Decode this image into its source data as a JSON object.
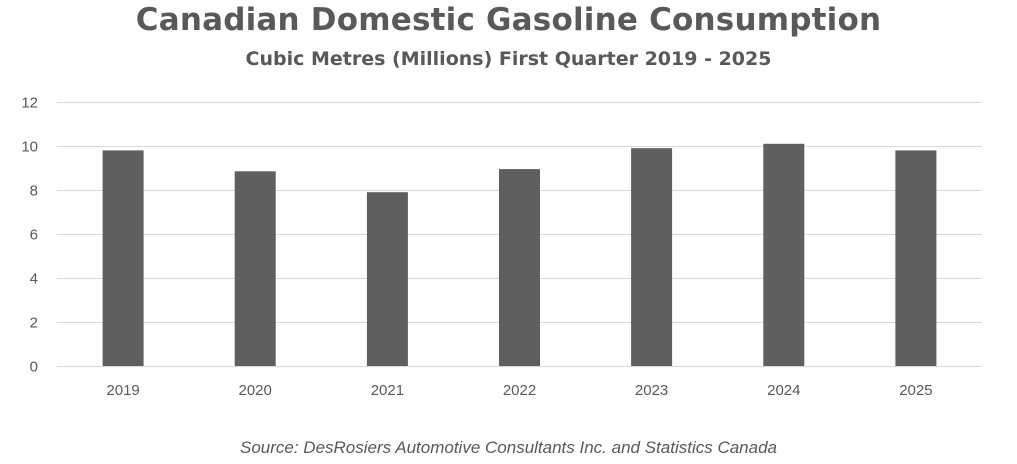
{
  "colors": {
    "bar": "#5f5f5f",
    "gridline": "#d9d9d9",
    "text": "#595959"
  },
  "chart_data": {
    "type": "bar",
    "title": "Canadian Domestic Gasoline Consumption",
    "subtitle": "Cubic Metres (Millions) First Quarter 2019 - 2025",
    "xlabel": "",
    "ylabel": "",
    "categories": [
      "2019",
      "2020",
      "2021",
      "2022",
      "2023",
      "2024",
      "2025"
    ],
    "values": [
      9.8,
      8.85,
      7.9,
      8.95,
      9.9,
      10.1,
      9.8
    ],
    "ylim": [
      0,
      12
    ],
    "yticks": [
      "0",
      "2",
      "4",
      "6",
      "8",
      "10",
      "12"
    ],
    "grid": true,
    "legend": "none",
    "source": "Source: DesRosiers Automotive Consultants Inc. and Statistics Canada"
  }
}
